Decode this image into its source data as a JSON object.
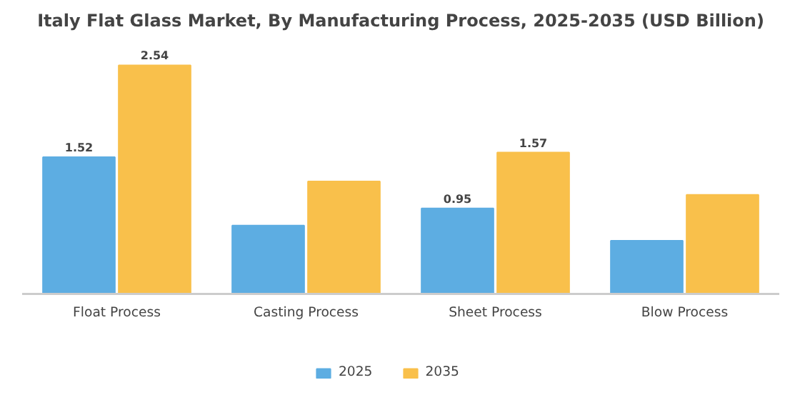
{
  "chart_data": {
    "type": "bar",
    "title": "Italy Flat Glass Market, By Manufacturing Process, 2025-2035 (USD Billion)",
    "categories": [
      "Float Process",
      "Casting Process",
      "Sheet Process",
      "Blow Process"
    ],
    "series": [
      {
        "name": "2025",
        "color": "#5dade2",
        "values": [
          1.52,
          0.76,
          0.95,
          0.59
        ],
        "value_labels": [
          "1.52",
          null,
          "0.95",
          null
        ]
      },
      {
        "name": "2035",
        "color": "#f9c04b",
        "values": [
          2.54,
          1.25,
          1.57,
          1.1
        ],
        "value_labels": [
          "2.54",
          null,
          "1.57",
          null
        ]
      }
    ],
    "legend": "bottom",
    "grid": false
  }
}
